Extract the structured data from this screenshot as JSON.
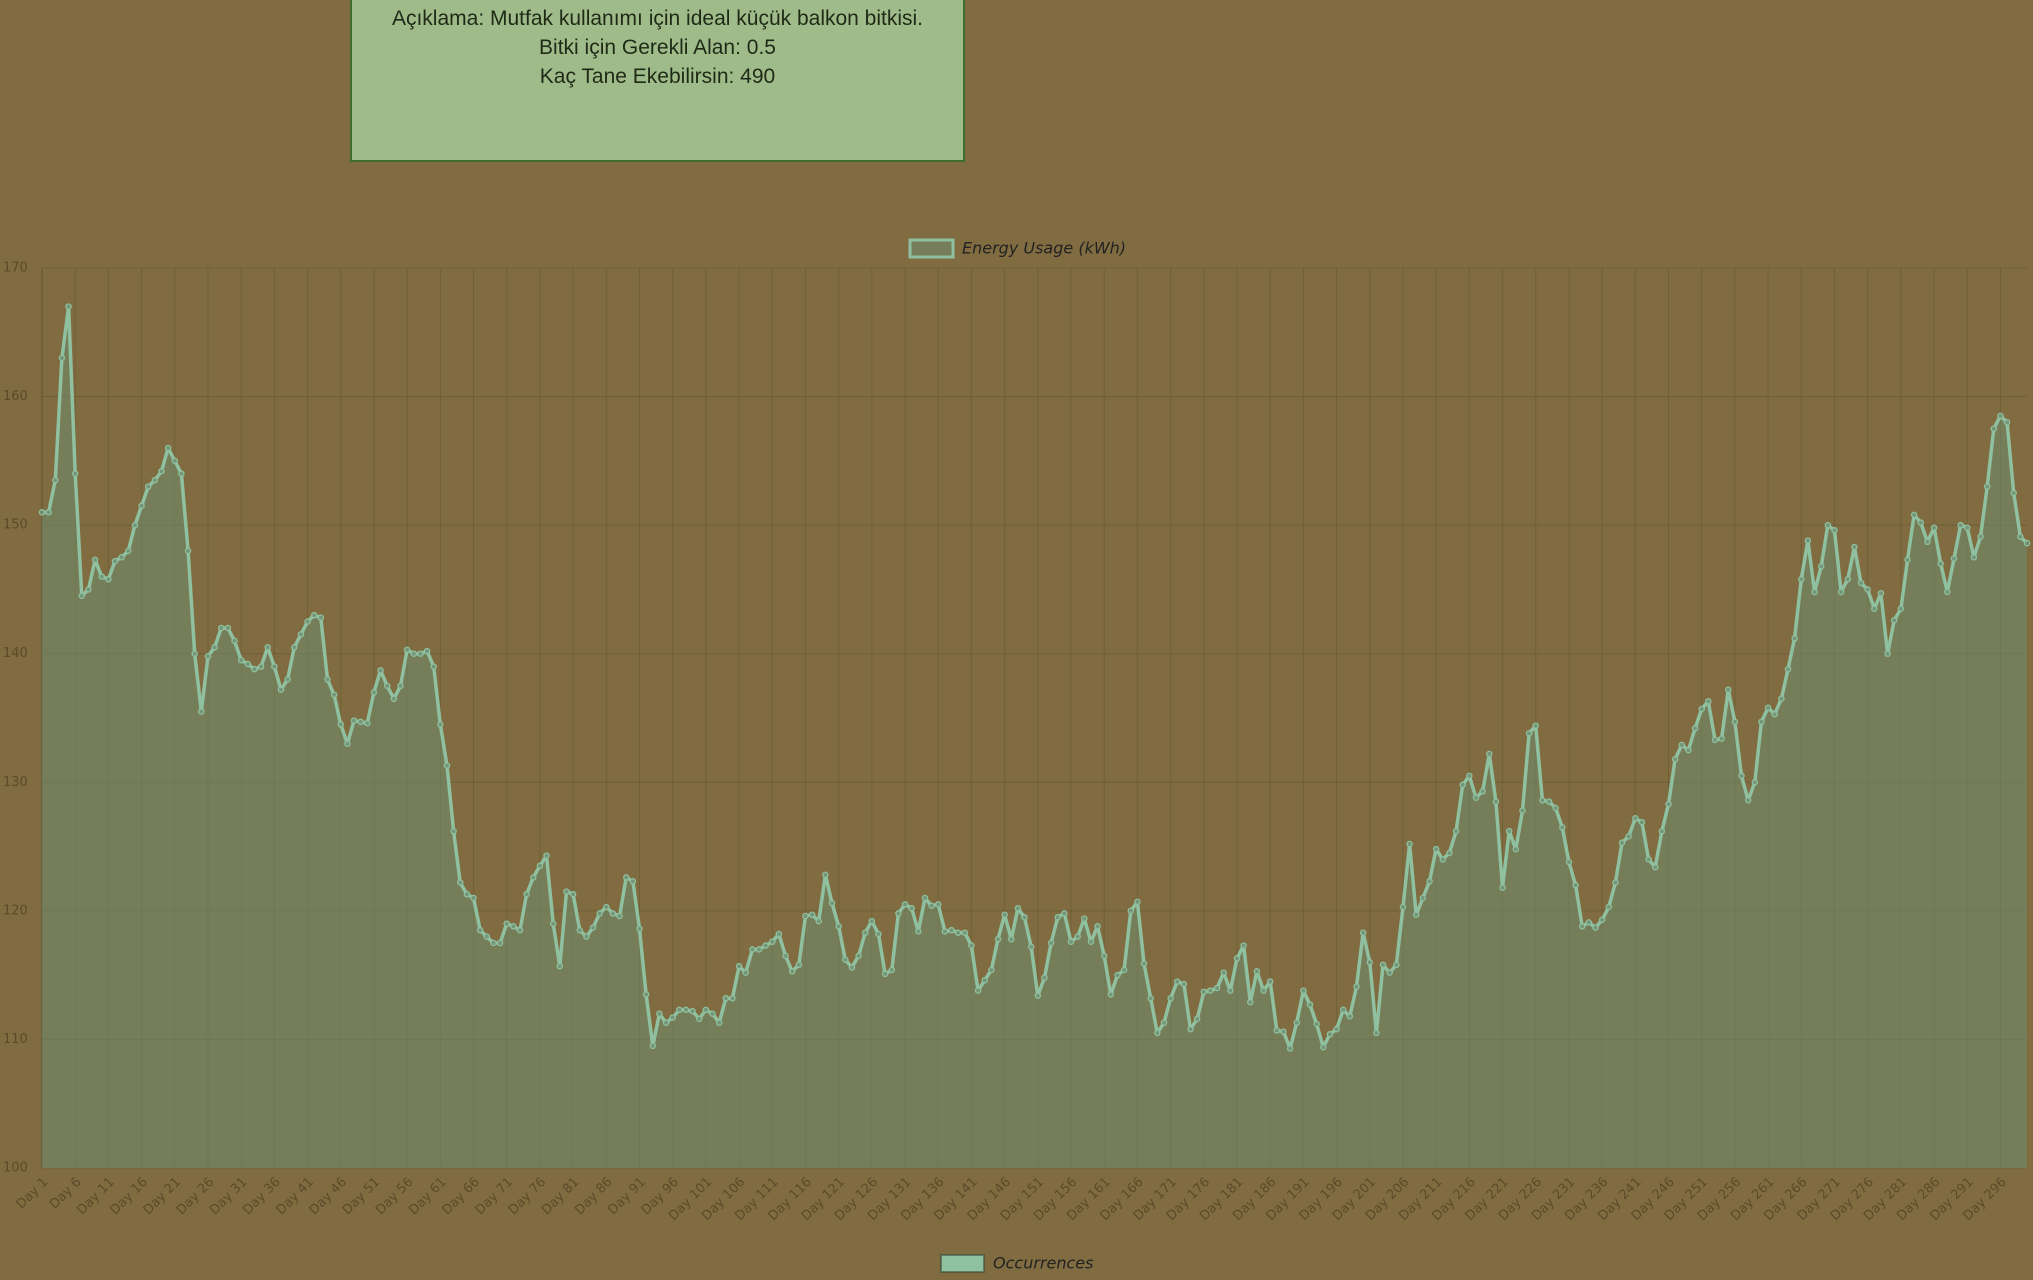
{
  "info_box": {
    "lines": [
      "Açıklama: Mutfak kullanımı için ideal küçük balkon bitkisi.",
      "Bitki için Gerekli Alan: 0.5",
      "Kaç Tane Ekebilirsin: 490"
    ]
  },
  "second_chart": {
    "legend": "Occurrences",
    "color": "#8fc1a0"
  },
  "chart_data": {
    "type": "line",
    "grid": true,
    "fill": true,
    "ylim": [
      100,
      170
    ],
    "yticks": [
      100,
      110,
      120,
      130,
      140,
      150,
      160,
      170
    ],
    "categories": [
      "Day 1",
      null,
      null,
      null,
      null,
      "Day 6",
      null,
      null,
      null,
      null,
      "Day 11",
      null,
      null,
      null,
      null,
      "Day 16",
      null,
      null,
      null,
      null,
      "Day 21",
      null,
      null,
      null,
      null,
      "Day 26",
      null,
      null,
      null,
      null,
      "Day 31",
      null,
      null,
      null,
      null,
      "Day 36",
      null,
      null,
      null,
      null,
      "Day 41",
      null,
      null,
      null,
      null,
      "Day 46",
      null,
      null,
      null,
      null,
      "Day 51",
      null,
      null,
      null,
      null,
      "Day 56",
      null,
      null,
      null,
      null,
      "Day 61",
      null,
      null,
      null,
      null,
      "Day 66",
      null,
      null,
      null,
      null,
      "Day 71",
      null,
      null,
      null,
      null,
      "Day 76",
      null,
      null,
      null,
      null,
      "Day 81",
      null,
      null,
      null,
      null,
      "Day 86",
      null,
      null,
      null,
      null,
      "Day 91",
      null,
      null,
      null,
      null,
      "Day 96",
      null,
      null,
      null,
      null,
      "Day 101",
      null,
      null,
      null,
      null,
      "Day 106",
      null,
      null,
      null,
      null,
      "Day 111",
      null,
      null,
      null,
      null,
      "Day 116",
      null,
      null,
      null,
      null,
      "Day 121",
      null,
      null,
      null,
      null,
      "Day 126",
      null,
      null,
      null,
      null,
      "Day 131",
      null,
      null,
      null,
      null,
      "Day 136",
      null,
      null,
      null,
      null,
      "Day 141",
      null,
      null,
      null,
      null,
      "Day 146",
      null,
      null,
      null,
      null,
      "Day 151",
      null,
      null,
      null,
      null,
      "Day 156",
      null,
      null,
      null,
      null,
      "Day 161",
      null,
      null,
      null,
      null,
      "Day 166",
      null,
      null,
      null,
      null,
      "Day 171",
      null,
      null,
      null,
      null,
      "Day 176",
      null,
      null,
      null,
      null,
      "Day 181",
      null,
      null,
      null,
      null,
      "Day 186",
      null,
      null,
      null,
      null,
      "Day 191",
      null,
      null,
      null,
      null,
      "Day 196",
      null,
      null,
      null,
      null,
      "Day 201",
      null,
      null,
      null,
      null,
      "Day 206",
      null,
      null,
      null,
      null,
      "Day 211",
      null,
      null,
      null,
      null,
      "Day 216",
      null,
      null,
      null,
      null,
      "Day 221",
      null,
      null,
      null,
      null,
      "Day 226",
      null,
      null,
      null,
      null,
      "Day 231",
      null,
      null,
      null,
      null,
      "Day 236",
      null,
      null,
      null,
      null,
      "Day 241",
      null,
      null,
      null,
      null,
      "Day 246",
      null,
      null,
      null,
      null,
      "Day 251",
      null,
      null,
      null,
      null,
      "Day 256",
      null,
      null,
      null,
      null,
      "Day 261",
      null,
      null,
      null,
      null,
      "Day 266",
      null,
      null,
      null,
      null,
      "Day 271",
      null,
      null,
      null,
      null,
      "Day 276",
      null,
      null,
      null,
      null,
      "Day 281",
      null,
      null,
      null,
      null,
      "Day 286",
      null,
      null,
      null,
      null,
      "Day 291",
      null,
      null,
      null,
      null,
      "Day 296",
      null,
      null,
      null,
      null
    ],
    "series": [
      {
        "name": "Energy Usage (kWh)",
        "color": "#8fc1a0",
        "values": [
          151,
          151,
          153.5,
          163,
          167,
          154,
          144.5,
          145,
          147.3,
          146,
          145.8,
          147.2,
          147.5,
          148,
          150,
          151.5,
          153,
          153.5,
          154.2,
          156,
          155,
          154,
          148,
          140,
          135.5,
          139.8,
          140.5,
          142,
          142,
          141,
          139.5,
          139.2,
          138.8,
          139,
          140.5,
          139,
          137.2,
          138,
          140.5,
          141.5,
          142.5,
          143,
          142.8,
          138,
          136.8,
          134.5,
          133,
          134.8,
          134.7,
          134.6,
          137,
          138.7,
          137.5,
          136.5,
          137.5,
          140.3,
          140,
          140,
          140.2,
          139,
          134.5,
          131.3,
          126.2,
          122.2,
          121.3,
          121,
          118.5,
          118,
          117.5,
          117.5,
          119,
          118.8,
          118.5,
          121.3,
          122.6,
          123.5,
          124.3,
          119,
          115.7,
          121.5,
          121.3,
          118.5,
          118,
          118.7,
          119.8,
          120.3,
          119.8,
          119.6,
          122.6,
          122.3,
          118.6,
          113.5,
          109.5,
          112,
          111.3,
          111.7,
          112.3,
          112.3,
          112.2,
          111.6,
          112.3,
          112,
          111.3,
          113.2,
          113.2,
          115.7,
          115.2,
          117,
          117,
          117.3,
          117.6,
          118.2,
          116.5,
          115.3,
          115.8,
          119.6,
          119.7,
          119.2,
          122.8,
          120.6,
          118.8,
          116.2,
          115.6,
          116.5,
          118.3,
          119.2,
          118.2,
          115.1,
          115.4,
          119.8,
          120.5,
          120.2,
          118.4,
          121,
          120.4,
          120.5,
          118.4,
          118.5,
          118.3,
          118.3,
          117.3,
          113.8,
          114.6,
          115.4,
          117.8,
          119.7,
          117.8,
          120.2,
          119.5,
          117.2,
          113.4,
          114.8,
          117.5,
          119.5,
          119.8,
          117.6,
          118,
          119.4,
          117.6,
          118.8,
          116.5,
          113.5,
          115,
          115.4,
          120,
          120.7,
          115.9,
          113.2,
          110.5,
          111.3,
          113.2,
          114.5,
          114.3,
          110.8,
          111.6,
          113.7,
          113.8,
          114,
          115.2,
          113.8,
          116.3,
          117.3,
          112.9,
          115.3,
          113.8,
          114.5,
          110.7,
          110.6,
          109.3,
          111.3,
          113.8,
          112.7,
          111.2,
          109.4,
          110.4,
          110.8,
          112.3,
          111.8,
          114.1,
          118.3,
          116,
          110.5,
          115.8,
          115.2,
          115.8,
          120.3,
          125.2,
          119.7,
          121,
          122.3,
          124.8,
          124,
          124.5,
          126.2,
          129.8,
          130.5,
          128.8,
          129.3,
          132.2,
          128.5,
          121.8,
          126.2,
          124.8,
          127.8,
          133.8,
          134.4,
          128.6,
          128.5,
          128,
          126.5,
          123.8,
          122,
          118.8,
          119.1,
          118.7,
          119.3,
          120.3,
          122.2,
          125.3,
          125.8,
          127.2,
          126.9,
          124,
          123.4,
          126.2,
          128.3,
          131.8,
          132.9,
          132.5,
          134.2,
          135.7,
          136.3,
          133.3,
          133.4,
          137.2,
          134.7,
          130.5,
          128.6,
          130,
          134.7,
          135.8,
          135.3,
          136.5,
          138.8,
          141.2,
          145.8,
          148.8,
          144.8,
          146.8,
          150,
          149.6,
          144.8,
          145.8,
          148.3,
          145.5,
          145,
          143.5,
          144.7,
          140,
          142.6,
          143.5,
          147.3,
          150.8,
          150.2,
          148.7,
          149.8,
          147,
          144.8,
          147.4,
          150,
          149.8,
          147.5,
          149.1,
          153,
          157.5,
          158.5,
          158,
          152.5,
          149.1,
          148.6
        ]
      }
    ]
  }
}
